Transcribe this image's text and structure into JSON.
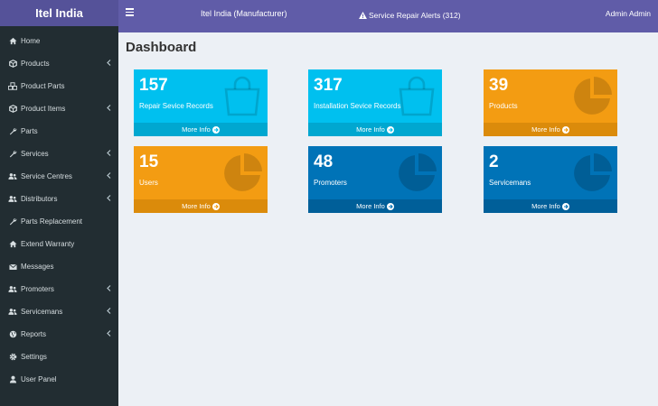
{
  "sidebar": {
    "brand": "Itel India",
    "items": [
      {
        "label": "Home",
        "icon": "home-icon",
        "chevron": false
      },
      {
        "label": "Products",
        "icon": "cube-icon",
        "chevron": true
      },
      {
        "label": "Product Parts",
        "icon": "cubes-icon",
        "chevron": false
      },
      {
        "label": "Product Items",
        "icon": "cube-icon",
        "chevron": true
      },
      {
        "label": "Parts",
        "icon": "wrench-icon",
        "chevron": false
      },
      {
        "label": "Services",
        "icon": "wrench-icon",
        "chevron": true
      },
      {
        "label": "Service Centres",
        "icon": "users-icon",
        "chevron": true
      },
      {
        "label": "Distributors",
        "icon": "users-icon",
        "chevron": true
      },
      {
        "label": "Parts Replacement",
        "icon": "wrench-icon",
        "chevron": false
      },
      {
        "label": "Extend Warranty",
        "icon": "home-icon",
        "chevron": false
      },
      {
        "label": "Messages",
        "icon": "envelope-icon",
        "chevron": false
      },
      {
        "label": "Promoters",
        "icon": "users-icon",
        "chevron": true
      },
      {
        "label": "Servicemans",
        "icon": "users-icon",
        "chevron": true
      },
      {
        "label": "Reports",
        "icon": "globe-icon",
        "chevron": true
      },
      {
        "label": "Settings",
        "icon": "gear-icon",
        "chevron": false
      },
      {
        "label": "User Panel",
        "icon": "user-icon",
        "chevron": false
      }
    ]
  },
  "header": {
    "title": "Itel India (Manufacturer)",
    "alerts": "Service Repair Alerts (312)",
    "user": "Admin Admin"
  },
  "main": {
    "title": "Dashboard",
    "more_info": "More Info",
    "boxes": [
      {
        "value": "157",
        "label": "Repair Sevice Records",
        "color": "aqua",
        "icon": "shopping-bag-icon"
      },
      {
        "value": "317",
        "label": "Installation Sevice Records",
        "color": "aqua",
        "icon": "shopping-bag-icon"
      },
      {
        "value": "39",
        "label": "Products",
        "color": "orange",
        "icon": "pie-chart-icon"
      },
      {
        "value": "15",
        "label": "Users",
        "color": "orange",
        "icon": "pie-chart-icon"
      },
      {
        "value": "48",
        "label": "Promoters",
        "color": "blue",
        "icon": "pie-chart-icon"
      },
      {
        "value": "2",
        "label": "Servicemans",
        "color": "blue",
        "icon": "pie-chart-icon"
      }
    ]
  },
  "colors": {
    "sidebar": "#222d32",
    "topbar": "#605ca8",
    "aqua": "#00c0ef",
    "orange": "#f39c12",
    "blue": "#0073b7"
  }
}
